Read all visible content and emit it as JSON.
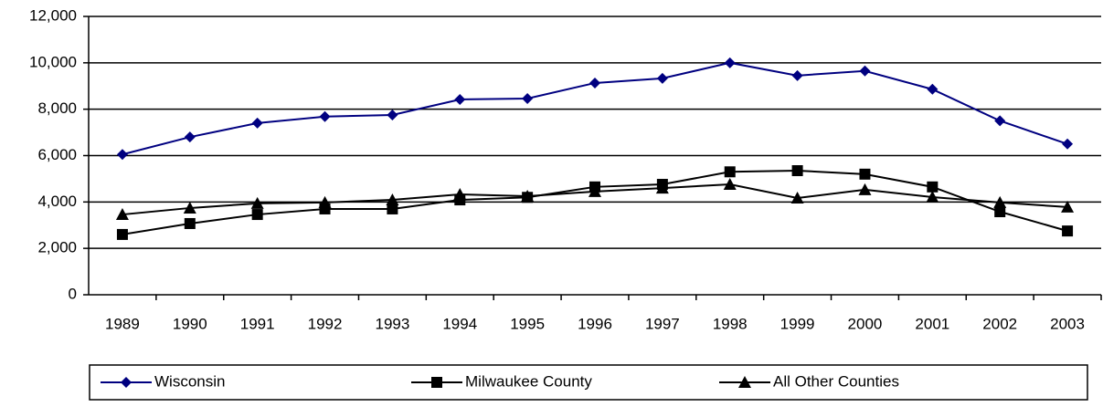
{
  "chart_data": {
    "type": "line",
    "categories": [
      "1989",
      "1990",
      "1991",
      "1992",
      "1993",
      "1994",
      "1995",
      "1996",
      "1997",
      "1998",
      "1999",
      "2000",
      "2001",
      "2002",
      "2003"
    ],
    "series": [
      {
        "name": "Wisconsin",
        "color": "#000080",
        "marker": "diamond",
        "values": [
          6050,
          6800,
          7400,
          7680,
          7750,
          8420,
          8460,
          9130,
          9330,
          10000,
          9450,
          9650,
          8860,
          7500,
          6500
        ]
      },
      {
        "name": "Milwaukee County",
        "color": "#000000",
        "marker": "square",
        "values": [
          2600,
          3070,
          3460,
          3700,
          3700,
          4090,
          4200,
          4650,
          4760,
          5300,
          5350,
          5200,
          4650,
          3580,
          2750
        ]
      },
      {
        "name": "All Other Counties",
        "color": "#000000",
        "marker": "triangle",
        "values": [
          3460,
          3740,
          3940,
          3980,
          4090,
          4330,
          4250,
          4450,
          4600,
          4760,
          4170,
          4530,
          4210,
          3980,
          3780
        ]
      }
    ],
    "ylim": [
      0,
      12000
    ],
    "yticks": [
      0,
      {
        "value": 2000,
        "label": "2,000"
      },
      {
        "value": 4000,
        "label": "4,000"
      },
      {
        "value": 6000,
        "label": "6,000"
      },
      {
        "value": 8000,
        "label": "8,000"
      },
      {
        "value": 10000,
        "label": "10,000"
      },
      {
        "value": 12000,
        "label": "12,000"
      }
    ],
    "grid": true
  }
}
